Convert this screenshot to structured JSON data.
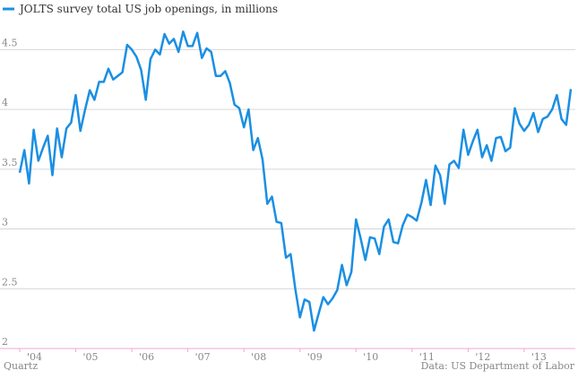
{
  "chart_data": {
    "type": "line",
    "series": [
      {
        "name": "JOLTS survey total US job openings, in millions",
        "color": "#1a8fe3",
        "values": [
          3.47,
          3.66,
          3.38,
          3.83,
          3.57,
          3.68,
          3.78,
          3.45,
          3.84,
          3.6,
          3.84,
          3.89,
          4.12,
          3.82,
          4.0,
          4.16,
          4.08,
          4.23,
          4.23,
          4.34,
          4.25,
          4.28,
          4.31,
          4.54,
          4.5,
          4.44,
          4.33,
          4.08,
          4.42,
          4.5,
          4.46,
          4.63,
          4.55,
          4.59,
          4.48,
          4.65,
          4.53,
          4.53,
          4.64,
          4.43,
          4.51,
          4.48,
          4.28,
          4.28,
          4.32,
          4.22,
          4.04,
          4.01,
          3.85,
          4.0,
          3.66,
          3.76,
          3.58,
          3.21,
          3.27,
          3.06,
          3.05,
          2.76,
          2.79,
          2.5,
          2.26,
          2.41,
          2.39,
          2.15,
          2.29,
          2.43,
          2.37,
          2.42,
          2.49,
          2.7,
          2.53,
          2.64,
          3.08,
          2.92,
          2.74,
          2.93,
          2.92,
          2.79,
          3.02,
          3.08,
          2.89,
          2.88,
          3.03,
          3.12,
          3.1,
          3.07,
          3.22,
          3.41,
          3.2,
          3.53,
          3.45,
          3.21,
          3.54,
          3.57,
          3.51,
          3.83,
          3.62,
          3.73,
          3.83,
          3.6,
          3.7,
          3.57,
          3.76,
          3.77,
          3.65,
          3.68,
          4.01,
          3.88,
          3.82,
          3.87,
          3.97,
          3.81,
          3.92,
          3.94,
          4.0,
          4.12,
          3.92,
          3.87,
          4.17
        ]
      }
    ],
    "x": [
      2004,
      2004.083,
      2004.167,
      2004.25,
      2004.333,
      2004.417,
      2004.5,
      2004.583,
      2004.667,
      2004.75,
      2004.833,
      2004.917,
      2005,
      2005.083,
      2005.167,
      2005.25,
      2005.333,
      2005.417,
      2005.5,
      2005.583,
      2005.667,
      2005.75,
      2005.833,
      2005.917,
      2006,
      2006.083,
      2006.167,
      2006.25,
      2006.333,
      2006.417,
      2006.5,
      2006.583,
      2006.667,
      2006.75,
      2006.833,
      2006.917,
      2007,
      2007.083,
      2007.167,
      2007.25,
      2007.333,
      2007.417,
      2007.5,
      2007.583,
      2007.667,
      2007.75,
      2007.833,
      2007.917,
      2008,
      2008.083,
      2008.167,
      2008.25,
      2008.333,
      2008.417,
      2008.5,
      2008.583,
      2008.667,
      2008.75,
      2008.833,
      2008.917,
      2009,
      2009.083,
      2009.167,
      2009.25,
      2009.333,
      2009.417,
      2009.5,
      2009.583,
      2009.667,
      2009.75,
      2009.833,
      2009.917,
      2010,
      2010.083,
      2010.167,
      2010.25,
      2010.333,
      2010.417,
      2010.5,
      2010.583,
      2010.667,
      2010.75,
      2010.833,
      2010.917,
      2011,
      2011.083,
      2011.167,
      2011.25,
      2011.333,
      2011.417,
      2011.5,
      2011.583,
      2011.667,
      2011.75,
      2011.833,
      2011.917,
      2012,
      2012.083,
      2012.167,
      2012.25,
      2012.333,
      2012.417,
      2012.5,
      2012.583,
      2012.667,
      2012.75,
      2012.833,
      2012.917,
      2013,
      2013.083,
      2013.167,
      2013.25,
      2013.333,
      2013.417,
      2013.5,
      2013.583,
      2013.667,
      2013.75,
      2013.833
    ],
    "xlim": [
      2004,
      2013.833
    ],
    "xticks": [
      {
        "value": 2004,
        "label": "'04"
      },
      {
        "value": 2005,
        "label": "'05"
      },
      {
        "value": 2006,
        "label": "'06"
      },
      {
        "value": 2007,
        "label": "'07"
      },
      {
        "value": 2008,
        "label": "'08"
      },
      {
        "value": 2009,
        "label": "'09"
      },
      {
        "value": 2010,
        "label": "'10"
      },
      {
        "value": 2011,
        "label": "'11"
      },
      {
        "value": 2012,
        "label": "'12"
      },
      {
        "value": 2013,
        "label": "'13"
      }
    ],
    "ylim": [
      2,
      4.75
    ],
    "yticks": [
      2,
      2.5,
      3,
      3.5,
      4,
      4.5
    ],
    "grid": true,
    "credit": "Quartz",
    "source": "Data: US Department of Labor"
  }
}
